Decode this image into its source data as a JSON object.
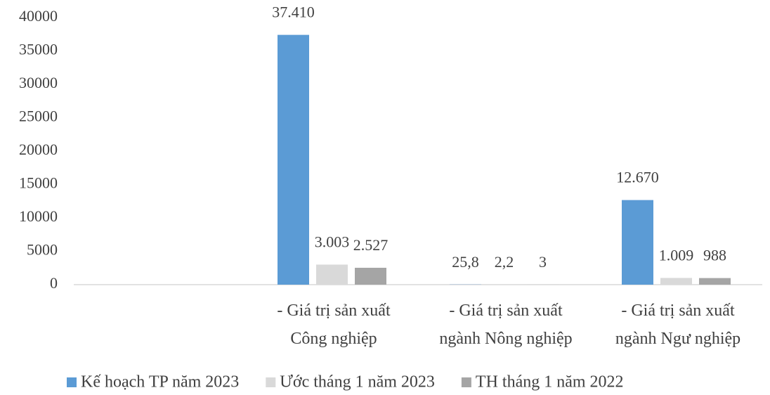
{
  "chart_data": {
    "type": "bar",
    "categories": [
      null,
      "- Giá trị sản xuất\nCông nghiệp",
      "- Giá trị sản xuất\nngành Nông nghiệp",
      "- Giá trị sản xuất\nngành Ngư nghiệp"
    ],
    "series": [
      {
        "name": "Kế hoạch TP năm 2023",
        "color": "#5b9bd5",
        "values": [
          null,
          37410,
          25.8,
          12670
        ],
        "value_labels": [
          null,
          "37.410",
          "25,8",
          "12.670"
        ]
      },
      {
        "name": "Ước tháng 1 năm 2023",
        "color": "#d9d9d9",
        "values": [
          null,
          3003,
          2.2,
          1009
        ],
        "value_labels": [
          null,
          "3.003",
          "2,2",
          "1.009"
        ]
      },
      {
        "name": "TH tháng 1 năm 2022",
        "color": "#a5a5a5",
        "values": [
          null,
          2527,
          3,
          988
        ],
        "value_labels": [
          null,
          "2.527",
          "3",
          "988"
        ]
      }
    ],
    "ylim": [
      0,
      40000
    ],
    "yticks": [
      0,
      5000,
      10000,
      15000,
      20000,
      25000,
      30000,
      35000,
      40000
    ],
    "grid": false,
    "legend": "bottom"
  }
}
